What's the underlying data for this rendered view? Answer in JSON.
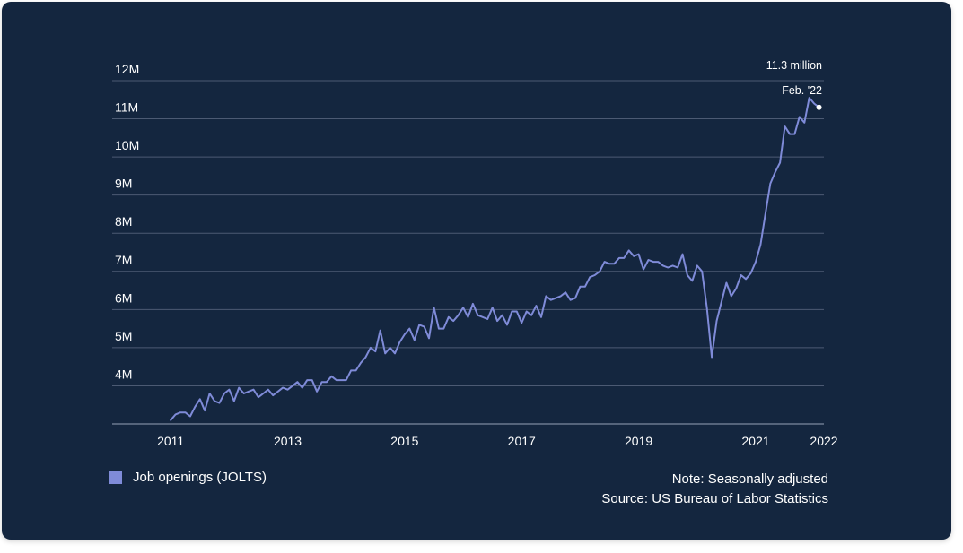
{
  "chart_data": {
    "type": "line",
    "title": "",
    "xlabel": "",
    "ylabel": "",
    "y_ticks": [
      "4M",
      "5M",
      "6M",
      "7M",
      "8M",
      "9M",
      "10M",
      "11M",
      "12M"
    ],
    "y_tick_values": [
      4,
      5,
      6,
      7,
      8,
      9,
      10,
      11,
      12
    ],
    "ylim": [
      3,
      12
    ],
    "x_ticks": [
      "2011",
      "2013",
      "2015",
      "2017",
      "2019",
      "2021",
      "2022"
    ],
    "x_tick_values": [
      "2011-01",
      "2013-01",
      "2015-01",
      "2017-01",
      "2019-01",
      "2021-01",
      "2022-03"
    ],
    "xlim": [
      "2010-01",
      "2022-03"
    ],
    "grid": true,
    "series": [
      {
        "name": "Job openings (JOLTS)",
        "color": "#7f8bd8",
        "points": [
          [
            "2011-01",
            3.1
          ],
          [
            "2011-02",
            3.25
          ],
          [
            "2011-03",
            3.3
          ],
          [
            "2011-04",
            3.3
          ],
          [
            "2011-05",
            3.2
          ],
          [
            "2011-06",
            3.45
          ],
          [
            "2011-07",
            3.65
          ],
          [
            "2011-08",
            3.35
          ],
          [
            "2011-09",
            3.8
          ],
          [
            "2011-10",
            3.6
          ],
          [
            "2011-11",
            3.55
          ],
          [
            "2011-12",
            3.8
          ],
          [
            "2012-01",
            3.9
          ],
          [
            "2012-02",
            3.6
          ],
          [
            "2012-03",
            3.95
          ],
          [
            "2012-04",
            3.8
          ],
          [
            "2012-05",
            3.85
          ],
          [
            "2012-06",
            3.9
          ],
          [
            "2012-07",
            3.7
          ],
          [
            "2012-08",
            3.8
          ],
          [
            "2012-09",
            3.9
          ],
          [
            "2012-10",
            3.75
          ],
          [
            "2012-11",
            3.85
          ],
          [
            "2012-12",
            3.95
          ],
          [
            "2013-01",
            3.9
          ],
          [
            "2013-02",
            4.0
          ],
          [
            "2013-03",
            4.1
          ],
          [
            "2013-04",
            3.95
          ],
          [
            "2013-05",
            4.15
          ],
          [
            "2013-06",
            4.15
          ],
          [
            "2013-07",
            3.85
          ],
          [
            "2013-08",
            4.1
          ],
          [
            "2013-09",
            4.1
          ],
          [
            "2013-10",
            4.25
          ],
          [
            "2013-11",
            4.15
          ],
          [
            "2013-12",
            4.15
          ],
          [
            "2014-01",
            4.15
          ],
          [
            "2014-02",
            4.4
          ],
          [
            "2014-03",
            4.4
          ],
          [
            "2014-04",
            4.6
          ],
          [
            "2014-05",
            4.75
          ],
          [
            "2014-06",
            5.0
          ],
          [
            "2014-07",
            4.9
          ],
          [
            "2014-08",
            5.45
          ],
          [
            "2014-09",
            4.85
          ],
          [
            "2014-10",
            5.0
          ],
          [
            "2014-11",
            4.85
          ],
          [
            "2014-12",
            5.15
          ],
          [
            "2015-01",
            5.35
          ],
          [
            "2015-02",
            5.5
          ],
          [
            "2015-03",
            5.2
          ],
          [
            "2015-04",
            5.6
          ],
          [
            "2015-05",
            5.55
          ],
          [
            "2015-06",
            5.25
          ],
          [
            "2015-07",
            6.05
          ],
          [
            "2015-08",
            5.5
          ],
          [
            "2015-09",
            5.5
          ],
          [
            "2015-10",
            5.8
          ],
          [
            "2015-11",
            5.7
          ],
          [
            "2015-12",
            5.85
          ],
          [
            "2016-01",
            6.05
          ],
          [
            "2016-02",
            5.8
          ],
          [
            "2016-03",
            6.15
          ],
          [
            "2016-04",
            5.85
          ],
          [
            "2016-05",
            5.8
          ],
          [
            "2016-06",
            5.75
          ],
          [
            "2016-07",
            6.05
          ],
          [
            "2016-08",
            5.7
          ],
          [
            "2016-09",
            5.85
          ],
          [
            "2016-10",
            5.6
          ],
          [
            "2016-11",
            5.95
          ],
          [
            "2016-12",
            5.95
          ],
          [
            "2017-01",
            5.65
          ],
          [
            "2017-02",
            5.95
          ],
          [
            "2017-03",
            5.85
          ],
          [
            "2017-04",
            6.1
          ],
          [
            "2017-05",
            5.8
          ],
          [
            "2017-06",
            6.35
          ],
          [
            "2017-07",
            6.25
          ],
          [
            "2017-08",
            6.3
          ],
          [
            "2017-09",
            6.35
          ],
          [
            "2017-10",
            6.45
          ],
          [
            "2017-11",
            6.25
          ],
          [
            "2017-12",
            6.3
          ],
          [
            "2018-01",
            6.6
          ],
          [
            "2018-02",
            6.6
          ],
          [
            "2018-03",
            6.85
          ],
          [
            "2018-04",
            6.9
          ],
          [
            "2018-05",
            7.0
          ],
          [
            "2018-06",
            7.25
          ],
          [
            "2018-07",
            7.2
          ],
          [
            "2018-08",
            7.2
          ],
          [
            "2018-09",
            7.35
          ],
          [
            "2018-10",
            7.35
          ],
          [
            "2018-11",
            7.55
          ],
          [
            "2018-12",
            7.4
          ],
          [
            "2019-01",
            7.45
          ],
          [
            "2019-02",
            7.05
          ],
          [
            "2019-03",
            7.3
          ],
          [
            "2019-04",
            7.25
          ],
          [
            "2019-05",
            7.25
          ],
          [
            "2019-06",
            7.15
          ],
          [
            "2019-07",
            7.1
          ],
          [
            "2019-08",
            7.15
          ],
          [
            "2019-09",
            7.1
          ],
          [
            "2019-10",
            7.45
          ],
          [
            "2019-11",
            6.9
          ],
          [
            "2019-12",
            6.75
          ],
          [
            "2020-01",
            7.15
          ],
          [
            "2020-02",
            7.0
          ],
          [
            "2020-03",
            6.05
          ],
          [
            "2020-04",
            4.75
          ],
          [
            "2020-05",
            5.7
          ],
          [
            "2020-06",
            6.2
          ],
          [
            "2020-07",
            6.7
          ],
          [
            "2020-08",
            6.35
          ],
          [
            "2020-09",
            6.55
          ],
          [
            "2020-10",
            6.9
          ],
          [
            "2020-11",
            6.8
          ],
          [
            "2020-12",
            6.95
          ],
          [
            "2021-01",
            7.25
          ],
          [
            "2021-02",
            7.7
          ],
          [
            "2021-03",
            8.5
          ],
          [
            "2021-04",
            9.3
          ],
          [
            "2021-05",
            9.6
          ],
          [
            "2021-06",
            9.85
          ],
          [
            "2021-07",
            10.8
          ],
          [
            "2021-08",
            10.6
          ],
          [
            "2021-09",
            10.6
          ],
          [
            "2021-10",
            11.05
          ],
          [
            "2021-11",
            10.9
          ],
          [
            "2021-12",
            11.55
          ],
          [
            "2022-01",
            11.4
          ],
          [
            "2022-02",
            11.3
          ]
        ]
      }
    ],
    "annotation": {
      "x": "2022-02",
      "y": 11.3,
      "value_label": "11.3 million",
      "date_label": "Feb. '22"
    }
  },
  "legend": {
    "label": "Job openings (JOLTS)",
    "color": "#7f8bd8"
  },
  "notes": {
    "line1": "Note: Seasonally adjusted",
    "line2": "Source: US Bureau of Labor Statistics"
  },
  "colors": {
    "background": "#14263f",
    "grid": "#4c5a73",
    "axis": "#6b788f",
    "text": "#ffffff"
  }
}
